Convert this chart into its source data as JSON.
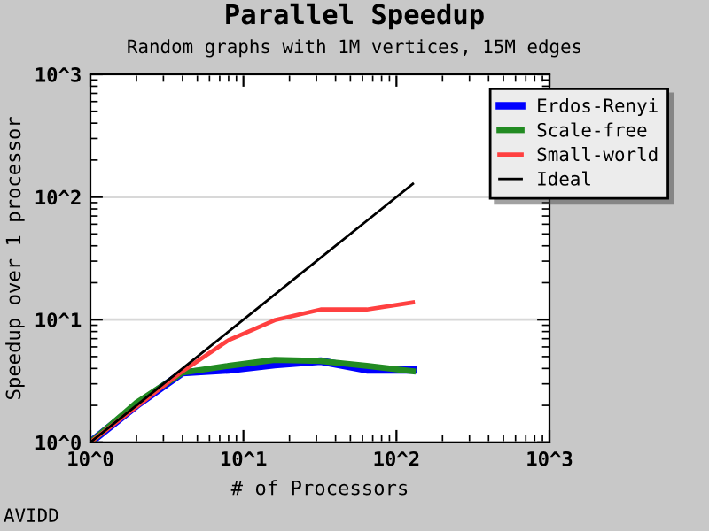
{
  "chart_data": {
    "type": "line",
    "title": "Parallel Speedup",
    "subtitle": "Random graphs with 1M vertices, 15M edges",
    "xlabel": "# of Processors",
    "ylabel": "Speedup over 1 processor",
    "annotations": [
      "AVIDD"
    ],
    "x": [
      1,
      2,
      4,
      8,
      16,
      32,
      64,
      128
    ],
    "series": [
      {
        "name": "Erdos-Renyi",
        "color": "#0000ff",
        "values": [
          1,
          2.0,
          3.7,
          3.9,
          4.3,
          4.6,
          3.9,
          3.9
        ]
      },
      {
        "name": "Scale-free",
        "color": "#228b22",
        "values": [
          1,
          2.1,
          3.7,
          4.2,
          4.7,
          4.6,
          4.2,
          3.8
        ]
      },
      {
        "name": "Small-world",
        "color": "#ff4040",
        "values": [
          1,
          1.95,
          3.8,
          6.8,
          9.9,
          12.1,
          12.1,
          13.8
        ]
      },
      {
        "name": "Ideal",
        "color": "#000000",
        "values": [
          1,
          2,
          4,
          8,
          16,
          32,
          64,
          128
        ]
      }
    ],
    "log": "xy",
    "xlim": [
      1,
      1000
    ],
    "ylim": [
      1,
      1000
    ],
    "xticks": [
      {
        "value": 1,
        "label": "10^0"
      },
      {
        "value": 10,
        "label": "10^1"
      },
      {
        "value": 100,
        "label": "10^2"
      },
      {
        "value": 1000,
        "label": "10^3"
      }
    ],
    "yticks": [
      {
        "value": 1,
        "label": "10^0"
      },
      {
        "value": 10,
        "label": "10^1"
      },
      {
        "value": 100,
        "label": "10^2"
      },
      {
        "value": 1000,
        "label": "10^3"
      }
    ],
    "grid": "y",
    "legend": "top right",
    "marker": "none",
    "line_style": "solid"
  }
}
